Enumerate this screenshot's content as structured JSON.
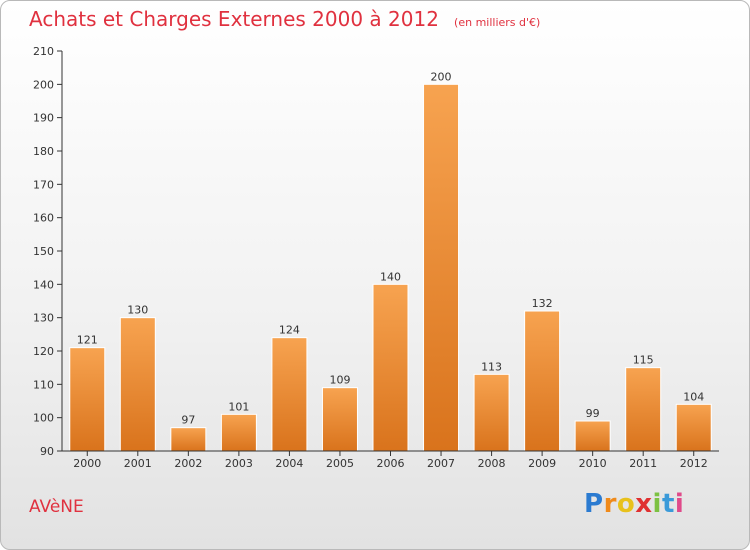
{
  "header": {
    "title": "Achats et Charges Externes 2000 à 2012",
    "subtitle": "(en milliers d'€)"
  },
  "footer": {
    "commune": "AVèNE",
    "logo_letters": [
      "P",
      "r",
      "o",
      "x",
      "i",
      "t",
      "i"
    ],
    "logo_colors": [
      "#2b7bd1",
      "#f08a1a",
      "#e8c11c",
      "#e03030",
      "#7cc142",
      "#3a9ad9",
      "#e04a8a"
    ]
  },
  "colors": {
    "title": "#e0313f",
    "bar_light": "#f7a350",
    "bar_dark": "#d9731c",
    "axis": "#333333"
  },
  "chart_data": {
    "type": "bar",
    "title": "Achats et Charges Externes 2000 à 2012",
    "categories": [
      "2000",
      "2001",
      "2002",
      "2003",
      "2004",
      "2005",
      "2006",
      "2007",
      "2008",
      "2009",
      "2010",
      "2011",
      "2012"
    ],
    "values": [
      121,
      130,
      97,
      101,
      124,
      109,
      140,
      200,
      113,
      132,
      99,
      115,
      104
    ],
    "ylim": [
      90,
      210
    ],
    "yticks": [
      90,
      100,
      110,
      120,
      130,
      140,
      150,
      160,
      170,
      180,
      190,
      200,
      210
    ],
    "data_labels": true,
    "grid": false
  }
}
